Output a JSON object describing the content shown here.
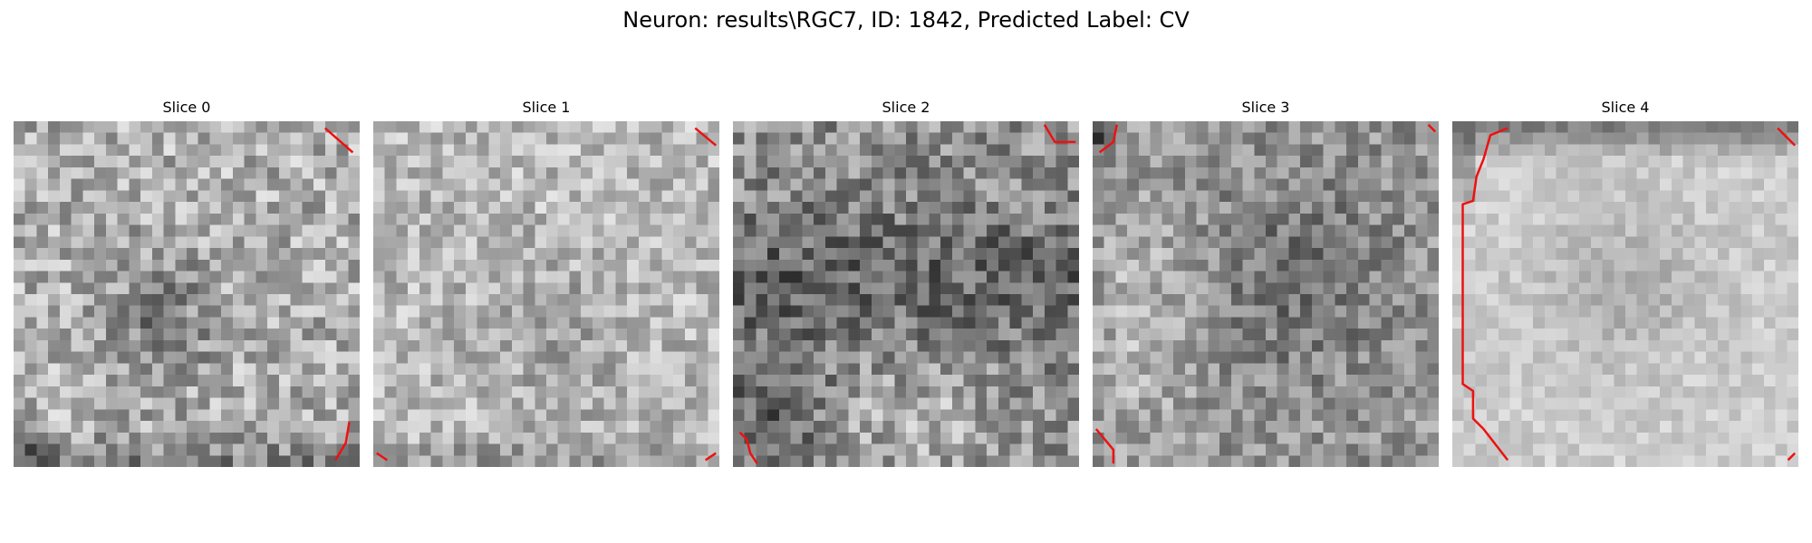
{
  "figure": {
    "title": "Neuron: results\\RGC7, ID: 1842, Predicted Label: CV"
  },
  "slices": [
    {
      "title": "Slice 0"
    },
    {
      "title": "Slice 1"
    },
    {
      "title": "Slice 2"
    },
    {
      "title": "Slice 3"
    },
    {
      "title": "Slice 4"
    }
  ],
  "colors": {
    "background": "#ffffff",
    "contour": "#ee1111",
    "image_colormap": "grayscale"
  }
}
